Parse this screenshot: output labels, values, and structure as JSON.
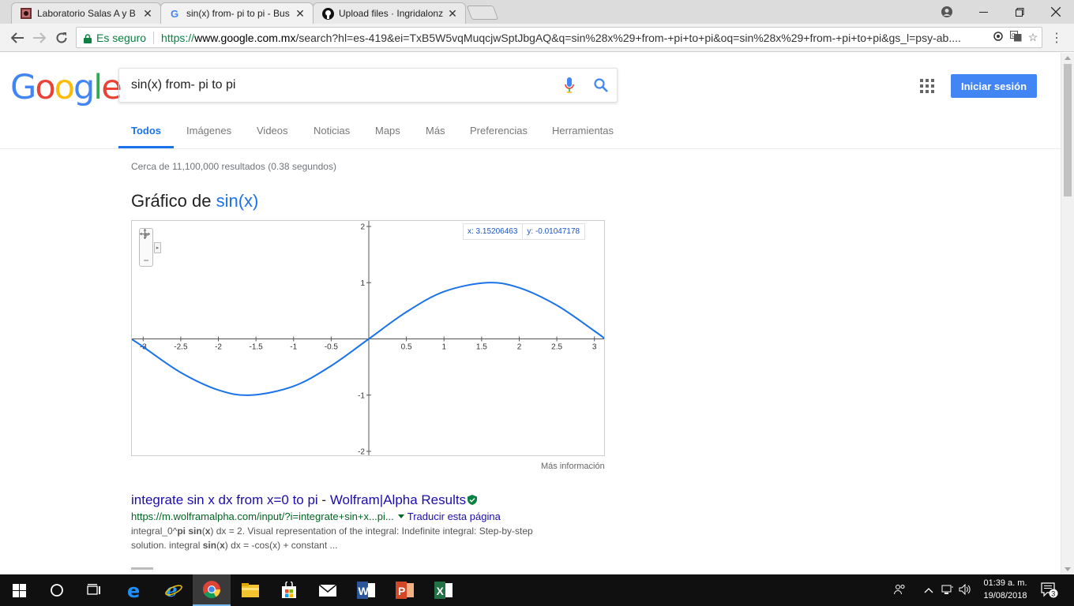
{
  "browser": {
    "tabs": [
      {
        "title": "Laboratorio Salas A y B",
        "favicon": "lab-favicon"
      },
      {
        "title": "sin(x) from- pi to pi - Bus",
        "favicon": "google-favicon"
      },
      {
        "title": "Upload files · Ingridalonz",
        "favicon": "github-favicon"
      }
    ],
    "security_label": "Es seguro",
    "url_prefix": "https://",
    "url_domain": "www.google.com.mx",
    "url_path": "/search?hl=es-419&ei=TxB5W5vqMuqcjwSptJbgAQ&q=sin%28x%29+from-+pi+to+pi&oq=sin%28x%29+from-+pi+to+pi&gs_l=psy-ab...."
  },
  "google": {
    "logo_letters": [
      "G",
      "o",
      "o",
      "g",
      "l",
      "e"
    ],
    "logo_colors": [
      "#4285F4",
      "#EA4335",
      "#FBBC05",
      "#4285F4",
      "#34A853",
      "#EA4335"
    ],
    "query": "sin(x) from- pi to pi",
    "signin_label": "Iniciar sesión",
    "search_tabs": [
      "Todos",
      "Imágenes",
      "Videos",
      "Noticias",
      "Maps",
      "Más",
      "Preferencias",
      "Herramientas"
    ],
    "active_tab": "Todos",
    "result_stats": "Cerca de 11,100,000 resultados (0.38 segundos)"
  },
  "graph": {
    "title_prefix": "Gráfico de ",
    "title_fn": "sin(x)",
    "coord_x": "x: 3.15206463",
    "coord_y": "y: -0.01047178",
    "zoom_in": "+",
    "zoom_out": "−",
    "more_info": "Más información"
  },
  "chart_data": {
    "type": "line",
    "function": "sin(x)",
    "xlim": [
      -3.15,
      3.15
    ],
    "ylim": [
      -2,
      2
    ],
    "x_ticks": [
      -3,
      -2.5,
      -2,
      -1.5,
      -1,
      -0.5,
      0.5,
      1,
      1.5,
      2,
      2.5,
      3
    ],
    "x_tick_labels": [
      "-3",
      "-2.5",
      "-2",
      "-1.5",
      "-1",
      "-0.5",
      "0.5",
      "1",
      "1.5",
      "2",
      "2.5",
      "3"
    ],
    "y_ticks": [
      2,
      1,
      -1,
      -2
    ],
    "y_tick_labels": [
      "2",
      "1",
      "-1",
      "-2"
    ],
    "series": [
      {
        "x": [
          -3.15,
          -3.0,
          -2.5,
          -2.0,
          -1.5708,
          -1.0,
          -0.5,
          0,
          0.5,
          1.0,
          1.5708,
          2.0,
          2.5,
          3.0,
          3.15
        ],
        "y": [
          -0.008,
          -0.141,
          -0.598,
          -0.909,
          -1.0,
          -0.841,
          -0.479,
          0,
          0.479,
          0.841,
          1.0,
          0.909,
          0.598,
          0.141,
          -0.008
        ],
        "color": "#1a73e8"
      }
    ],
    "grid": false
  },
  "result": {
    "title_a": "integrate sin x dx from x=0 to pi",
    "title_sep": " - ",
    "title_b": "Wolfram|Alpha Results",
    "url": "https://m.wolframalpha.com/input/?i=integrate+sin+x...pi...",
    "translate": "Traducir esta página",
    "snippet_1a": "integral_0^",
    "snippet_1b": "pi sin",
    "snippet_1c": "(",
    "snippet_1d": "x",
    "snippet_1e": ") dx = 2. Visual representation of the integral: Indefinite integral: Step-by-step",
    "snippet_2a": "solution. integral ",
    "snippet_2b": "sin",
    "snippet_2c": "(",
    "snippet_2d": "x",
    "snippet_2e": ") dx = -cos(x) + constant ..."
  },
  "taskbar": {
    "time": "01:39 a. m.",
    "date": "19/08/2018",
    "notifications": "3"
  }
}
